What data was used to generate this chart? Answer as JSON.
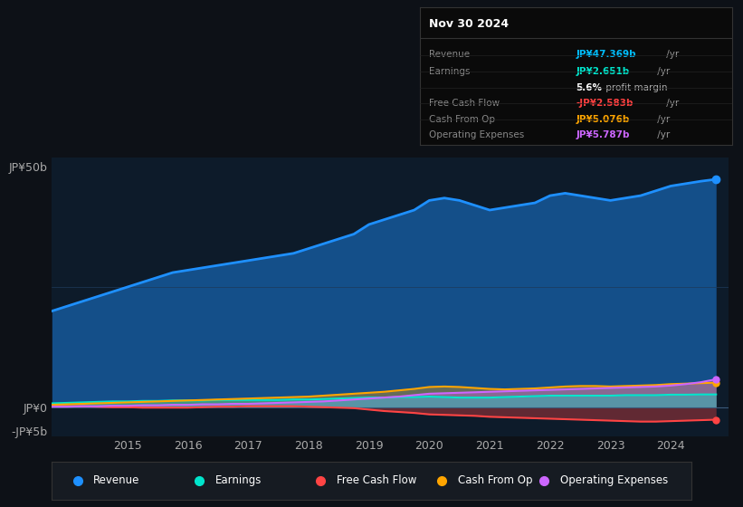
{
  "bg_color": "#0d1117",
  "plot_bg_color": "#0d1b2a",
  "title_text": "Nov 30 2024",
  "tooltip": {
    "Revenue": {
      "value": "JP¥47.369b",
      "color": "#00bfff"
    },
    "Earnings": {
      "value": "JP¥2.651b",
      "color": "#00e5cc"
    },
    "Free Cash Flow": {
      "value": "-JP¥2.583b",
      "color": "#ff4040"
    },
    "Cash From Op": {
      "value": "JP¥5.076b",
      "color": "#ffa500"
    },
    "Operating Expenses": {
      "value": "JP¥5.787b",
      "color": "#cc66ff"
    }
  },
  "ylabel_top": "JP¥50b",
  "ylabel_zero": "JP¥0",
  "ylabel_neg": "-JP¥5b",
  "ylim": [
    -6,
    52
  ],
  "years": [
    2013.75,
    2014.0,
    2014.25,
    2014.5,
    2014.75,
    2015.0,
    2015.25,
    2015.5,
    2015.75,
    2016.0,
    2016.25,
    2016.5,
    2016.75,
    2017.0,
    2017.25,
    2017.5,
    2017.75,
    2018.0,
    2018.25,
    2018.5,
    2018.75,
    2019.0,
    2019.25,
    2019.5,
    2019.75,
    2020.0,
    2020.25,
    2020.5,
    2020.75,
    2021.0,
    2021.25,
    2021.5,
    2021.75,
    2022.0,
    2022.25,
    2022.5,
    2022.75,
    2023.0,
    2023.25,
    2023.5,
    2023.75,
    2024.0,
    2024.25,
    2024.5,
    2024.75
  ],
  "revenue": [
    20,
    21,
    22,
    23,
    24,
    25,
    26,
    27,
    28,
    28.5,
    29,
    29.5,
    30,
    30.5,
    31,
    31.5,
    32,
    33,
    34,
    35,
    36,
    38,
    39,
    40,
    41,
    43,
    43.5,
    43,
    42,
    41,
    41.5,
    42,
    42.5,
    44,
    44.5,
    44,
    43.5,
    43,
    43.5,
    44,
    45,
    46,
    46.5,
    47,
    47.4
  ],
  "earnings": [
    0.8,
    0.9,
    1.0,
    1.1,
    1.2,
    1.2,
    1.3,
    1.3,
    1.4,
    1.4,
    1.4,
    1.5,
    1.5,
    1.5,
    1.5,
    1.5,
    1.6,
    1.6,
    1.7,
    1.8,
    1.9,
    2.0,
    2.0,
    2.1,
    2.1,
    2.2,
    2.1,
    2.0,
    2.0,
    2.0,
    2.1,
    2.2,
    2.3,
    2.4,
    2.4,
    2.4,
    2.4,
    2.4,
    2.5,
    2.5,
    2.5,
    2.6,
    2.6,
    2.65,
    2.65
  ],
  "free_cash_flow": [
    0.2,
    0.2,
    0.2,
    0.1,
    0.0,
    0.0,
    -0.1,
    -0.1,
    -0.1,
    -0.1,
    0.0,
    0.1,
    0.1,
    0.2,
    0.2,
    0.2,
    0.2,
    0.1,
    0.0,
    -0.1,
    -0.2,
    -0.5,
    -0.8,
    -1.0,
    -1.2,
    -1.5,
    -1.6,
    -1.7,
    -1.8,
    -2.0,
    -2.1,
    -2.2,
    -2.3,
    -2.4,
    -2.5,
    -2.6,
    -2.7,
    -2.8,
    -2.9,
    -3.0,
    -3.0,
    -2.9,
    -2.8,
    -2.7,
    -2.6
  ],
  "cash_from_op": [
    0.5,
    0.6,
    0.7,
    0.8,
    0.9,
    1.0,
    1.1,
    1.2,
    1.3,
    1.4,
    1.5,
    1.6,
    1.7,
    1.8,
    1.9,
    2.0,
    2.1,
    2.2,
    2.4,
    2.6,
    2.8,
    3.0,
    3.2,
    3.5,
    3.8,
    4.2,
    4.3,
    4.2,
    4.0,
    3.8,
    3.7,
    3.8,
    3.9,
    4.1,
    4.3,
    4.4,
    4.4,
    4.3,
    4.4,
    4.5,
    4.6,
    4.8,
    4.9,
    5.0,
    5.1
  ],
  "op_expenses": [
    0.1,
    0.1,
    0.2,
    0.2,
    0.3,
    0.3,
    0.4,
    0.4,
    0.5,
    0.5,
    0.6,
    0.6,
    0.7,
    0.7,
    0.8,
    0.9,
    1.0,
    1.1,
    1.2,
    1.4,
    1.6,
    1.8,
    2.0,
    2.2,
    2.5,
    2.8,
    2.9,
    3.0,
    3.1,
    3.2,
    3.3,
    3.4,
    3.5,
    3.6,
    3.7,
    3.8,
    3.9,
    4.0,
    4.1,
    4.2,
    4.3,
    4.5,
    4.8,
    5.2,
    5.8
  ],
  "xtick_years": [
    2015,
    2016,
    2017,
    2018,
    2019,
    2020,
    2021,
    2022,
    2023,
    2024
  ],
  "revenue_color": "#1e90ff",
  "earnings_color": "#00e5cc",
  "fcf_color": "#ff4444",
  "cashop_color": "#ffa500",
  "opex_color": "#cc66ff",
  "legend_labels": [
    "Revenue",
    "Earnings",
    "Free Cash Flow",
    "Cash From Op",
    "Operating Expenses"
  ],
  "legend_colors": [
    "#1e90ff",
    "#00e5cc",
    "#ff4444",
    "#ffa500",
    "#cc66ff"
  ]
}
